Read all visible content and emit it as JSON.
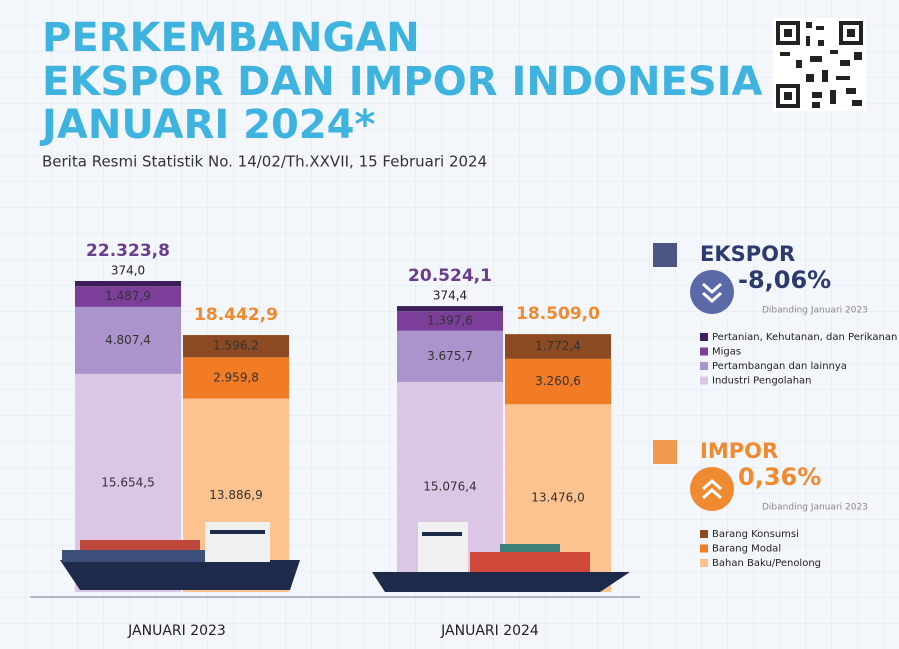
{
  "header": {
    "title_lines": [
      "PERKEMBANGAN",
      "EKSPOR DAN IMPOR INDONESIA",
      "JANUARI 2024*"
    ],
    "subtitle": "Berita Resmi Statistik No. 14/02/Th.XXVII, 15 Februari 2024"
  },
  "chart_data": {
    "type": "stacked-bar",
    "categories": [
      "JANUARI 2023",
      "JANUARI 2024"
    ],
    "groups": [
      {
        "name": "EKSPOR",
        "change": "-8,06%",
        "note": "Dibanding Januari 2023",
        "color": "#2d3a6e",
        "total_color": "#6a3d8f",
        "totals": [
          22323.8,
          20524.1
        ],
        "total_labels": [
          "22.323,8",
          "20.524,1"
        ],
        "series": [
          {
            "name": "Pertanian, Kehutanan, dan Perikanan",
            "color": "#3d1f5c",
            "values": [
              374.0,
              374.4
            ],
            "value_labels": [
              "374,0",
              "374,4"
            ]
          },
          {
            "name": "Migas",
            "color": "#7b3f9a",
            "values": [
              1487.9,
              1397.6
            ],
            "value_labels": [
              "1.487,9",
              "1.397,6"
            ]
          },
          {
            "name": "Pertambangan dan lainnya",
            "color": "#ab93cb",
            "values": [
              4807.4,
              3675.7
            ],
            "value_labels": [
              "4.807,4",
              "3.675,7"
            ]
          },
          {
            "name": "Industri Pengolahan",
            "color": "#dcc6e6",
            "values": [
              15654.5,
              15076.4
            ],
            "value_labels": [
              "15.654,5",
              "15.076,4"
            ]
          }
        ]
      },
      {
        "name": "IMPOR",
        "change": "0,36%",
        "note": "Dibanding Januari 2023",
        "color": "#f08a30",
        "total_color": "#f08a30",
        "totals": [
          18442.9,
          18509.0
        ],
        "total_labels": [
          "18.442,9",
          "18.509,0"
        ],
        "series": [
          {
            "name": "Barang Konsumsi",
            "color": "#8b4a22",
            "values": [
              1596.2,
              1772.4
            ],
            "value_labels": [
              "1.596,2",
              "1.772,4"
            ]
          },
          {
            "name": "Barang Modal",
            "color": "#f27b25",
            "values": [
              2959.8,
              3260.6
            ],
            "value_labels": [
              "2.959,8",
              "3.260,6"
            ]
          },
          {
            "name": "Bahan Baku/Penolong",
            "color": "#fcc28f",
            "values": [
              13886.9,
              13476.0
            ],
            "value_labels": [
              "13.886,9",
              "13.476,0"
            ]
          }
        ]
      }
    ]
  }
}
